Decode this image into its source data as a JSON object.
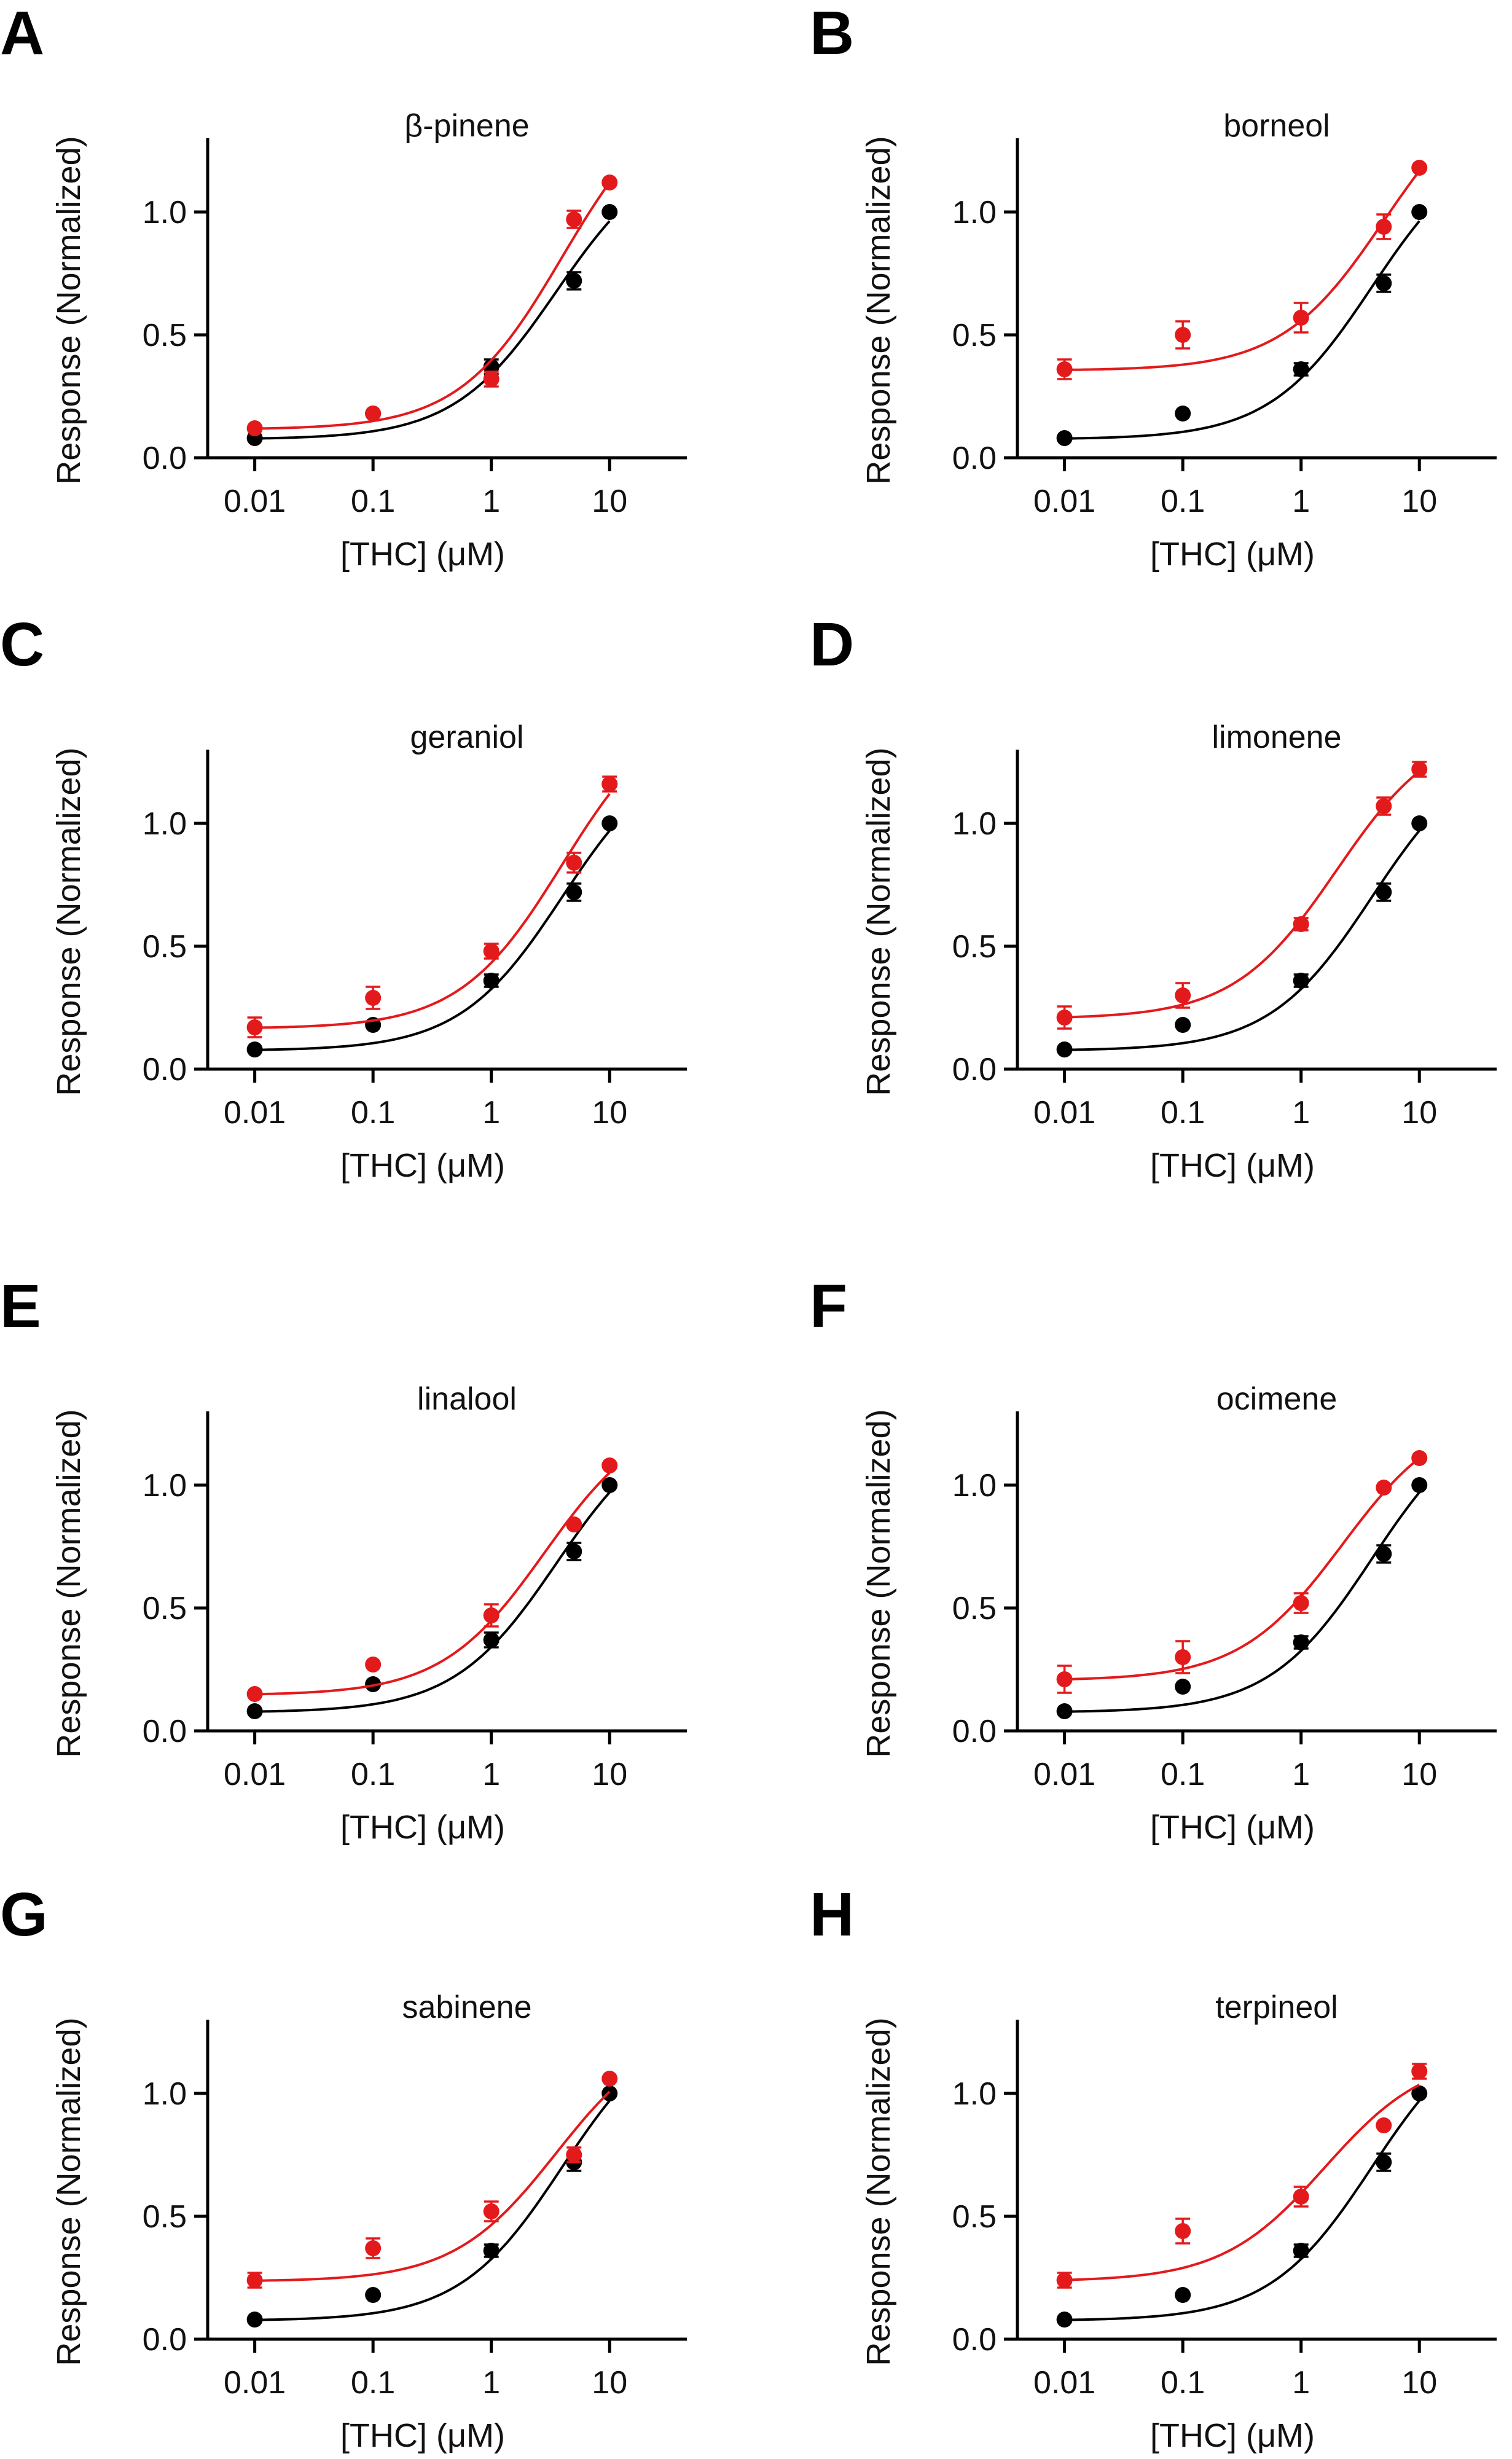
{
  "figure": {
    "series_colors": {
      "control": "#000000",
      "terpene": "#e31a1c"
    }
  },
  "chart_data": [
    {
      "panel": "A",
      "type": "scatter",
      "title": "β-pinene",
      "xlabel": "[THC] (μM)",
      "ylabel": "Response (Normalized)",
      "xscale": "log",
      "xlim": [
        0.004,
        45
      ],
      "ylim": [
        0,
        1.3
      ],
      "xticks": [
        0.01,
        0.1,
        1,
        10
      ],
      "xtick_labels": [
        "0.01",
        "0.1",
        "1",
        "10"
      ],
      "yticks": [
        0,
        0.5,
        1
      ],
      "ytick_labels": [
        "0.0",
        "0.5",
        "1.0"
      ],
      "x": [
        0.01,
        0.1,
        1,
        5,
        10
      ],
      "series": [
        {
          "key": "control",
          "values": [
            0.08,
            0.18,
            0.37,
            0.72,
            1.0
          ],
          "errors": [
            0,
            0,
            0.03,
            0.035,
            0
          ]
        },
        {
          "key": "terpene",
          "values": [
            0.12,
            0.18,
            0.32,
            0.97,
            1.12
          ],
          "errors": [
            0,
            0,
            0.03,
            0.035,
            0
          ]
        }
      ]
    },
    {
      "panel": "B",
      "type": "scatter",
      "title": "borneol",
      "xlabel": "[THC] (μM)",
      "ylabel": "Response (Normalized)",
      "xscale": "log",
      "xlim": [
        0.004,
        45
      ],
      "ylim": [
        0,
        1.3
      ],
      "xticks": [
        0.01,
        0.1,
        1,
        10
      ],
      "xtick_labels": [
        "0.01",
        "0.1",
        "1",
        "10"
      ],
      "yticks": [
        0,
        0.5,
        1
      ],
      "ytick_labels": [
        "0.0",
        "0.5",
        "1.0"
      ],
      "x": [
        0.01,
        0.1,
        1,
        5,
        10
      ],
      "series": [
        {
          "key": "control",
          "values": [
            0.08,
            0.18,
            0.36,
            0.71,
            1.0
          ],
          "errors": [
            0,
            0,
            0.025,
            0.035,
            0
          ]
        },
        {
          "key": "terpene",
          "values": [
            0.36,
            0.5,
            0.57,
            0.94,
            1.18
          ],
          "errors": [
            0.04,
            0.055,
            0.06,
            0.05,
            0
          ]
        }
      ]
    },
    {
      "panel": "C",
      "type": "scatter",
      "title": "geraniol",
      "xlabel": "[THC] (μM)",
      "ylabel": "Response (Normalized)",
      "xscale": "log",
      "xlim": [
        0.004,
        45
      ],
      "ylim": [
        0,
        1.3
      ],
      "xticks": [
        0.01,
        0.1,
        1,
        10
      ],
      "xtick_labels": [
        "0.01",
        "0.1",
        "1",
        "10"
      ],
      "yticks": [
        0,
        0.5,
        1
      ],
      "ytick_labels": [
        "0.0",
        "0.5",
        "1.0"
      ],
      "x": [
        0.01,
        0.1,
        1,
        5,
        10
      ],
      "series": [
        {
          "key": "control",
          "values": [
            0.08,
            0.18,
            0.36,
            0.72,
            1.0
          ],
          "errors": [
            0,
            0,
            0.025,
            0.035,
            0
          ]
        },
        {
          "key": "terpene",
          "values": [
            0.17,
            0.29,
            0.48,
            0.84,
            1.16
          ],
          "errors": [
            0.04,
            0.045,
            0.03,
            0.04,
            0.03
          ]
        }
      ]
    },
    {
      "panel": "D",
      "type": "scatter",
      "title": "limonene",
      "xlabel": "[THC] (μM)",
      "ylabel": "Response (Normalized)",
      "xscale": "log",
      "xlim": [
        0.004,
        45
      ],
      "ylim": [
        0,
        1.3
      ],
      "xticks": [
        0.01,
        0.1,
        1,
        10
      ],
      "xtick_labels": [
        "0.01",
        "0.1",
        "1",
        "10"
      ],
      "yticks": [
        0,
        0.5,
        1
      ],
      "ytick_labels": [
        "0.0",
        "0.5",
        "1.0"
      ],
      "x": [
        0.01,
        0.1,
        1,
        5,
        10
      ],
      "series": [
        {
          "key": "control",
          "values": [
            0.08,
            0.18,
            0.36,
            0.72,
            1.0
          ],
          "errors": [
            0,
            0,
            0.025,
            0.035,
            0
          ]
        },
        {
          "key": "terpene",
          "values": [
            0.21,
            0.3,
            0.59,
            1.07,
            1.22
          ],
          "errors": [
            0.045,
            0.05,
            0.025,
            0.035,
            0.03
          ]
        }
      ]
    },
    {
      "panel": "E",
      "type": "scatter",
      "title": "linalool",
      "xlabel": "[THC] (μM)",
      "ylabel": "Response (Normalized)",
      "xscale": "log",
      "xlim": [
        0.004,
        45
      ],
      "ylim": [
        0,
        1.3
      ],
      "xticks": [
        0.01,
        0.1,
        1,
        10
      ],
      "xtick_labels": [
        "0.01",
        "0.1",
        "1",
        "10"
      ],
      "yticks": [
        0,
        0.5,
        1
      ],
      "ytick_labels": [
        "0.0",
        "0.5",
        "1.0"
      ],
      "x": [
        0.01,
        0.1,
        1,
        5,
        10
      ],
      "series": [
        {
          "key": "control",
          "values": [
            0.08,
            0.19,
            0.37,
            0.73,
            1.0
          ],
          "errors": [
            0,
            0,
            0.03,
            0.035,
            0
          ]
        },
        {
          "key": "terpene",
          "values": [
            0.15,
            0.27,
            0.47,
            0.84,
            1.08
          ],
          "errors": [
            0,
            0,
            0.045,
            0,
            0
          ]
        }
      ]
    },
    {
      "panel": "F",
      "type": "scatter",
      "title": "ocimene",
      "xlabel": "[THC] (μM)",
      "ylabel": "Response (Normalized)",
      "xscale": "log",
      "xlim": [
        0.004,
        45
      ],
      "ylim": [
        0,
        1.3
      ],
      "xticks": [
        0.01,
        0.1,
        1,
        10
      ],
      "xtick_labels": [
        "0.01",
        "0.1",
        "1",
        "10"
      ],
      "yticks": [
        0,
        0.5,
        1
      ],
      "ytick_labels": [
        "0.0",
        "0.5",
        "1.0"
      ],
      "x": [
        0.01,
        0.1,
        1,
        5,
        10
      ],
      "series": [
        {
          "key": "control",
          "values": [
            0.08,
            0.18,
            0.36,
            0.72,
            1.0
          ],
          "errors": [
            0,
            0,
            0.025,
            0.035,
            0
          ]
        },
        {
          "key": "terpene",
          "values": [
            0.21,
            0.3,
            0.52,
            0.99,
            1.11
          ],
          "errors": [
            0.055,
            0.065,
            0.04,
            0,
            0
          ]
        }
      ]
    },
    {
      "panel": "G",
      "type": "scatter",
      "title": "sabinene",
      "xlabel": "[THC] (μM)",
      "ylabel": "Response (Normalized)",
      "xscale": "log",
      "xlim": [
        0.004,
        45
      ],
      "ylim": [
        0,
        1.3
      ],
      "xticks": [
        0.01,
        0.1,
        1,
        10
      ],
      "xtick_labels": [
        "0.01",
        "0.1",
        "1",
        "10"
      ],
      "yticks": [
        0,
        0.5,
        1
      ],
      "ytick_labels": [
        "0.0",
        "0.5",
        "1.0"
      ],
      "x": [
        0.01,
        0.1,
        1,
        5,
        10
      ],
      "series": [
        {
          "key": "control",
          "values": [
            0.08,
            0.18,
            0.36,
            0.72,
            1.0
          ],
          "errors": [
            0,
            0,
            0.025,
            0.035,
            0
          ]
        },
        {
          "key": "terpene",
          "values": [
            0.24,
            0.37,
            0.52,
            0.75,
            1.06
          ],
          "errors": [
            0.03,
            0.04,
            0.04,
            0.03,
            0
          ]
        }
      ]
    },
    {
      "panel": "H",
      "type": "scatter",
      "title": "terpineol",
      "xlabel": "[THC] (μM)",
      "ylabel": "Response (Normalized)",
      "xscale": "log",
      "xlim": [
        0.004,
        45
      ],
      "ylim": [
        0,
        1.3
      ],
      "xticks": [
        0.01,
        0.1,
        1,
        10
      ],
      "xtick_labels": [
        "0.01",
        "0.1",
        "1",
        "10"
      ],
      "yticks": [
        0,
        0.5,
        1
      ],
      "ytick_labels": [
        "0.0",
        "0.5",
        "1.0"
      ],
      "x": [
        0.01,
        0.1,
        1,
        5,
        10
      ],
      "series": [
        {
          "key": "control",
          "values": [
            0.08,
            0.18,
            0.36,
            0.72,
            1.0
          ],
          "errors": [
            0,
            0,
            0.025,
            0.035,
            0
          ]
        },
        {
          "key": "terpene",
          "values": [
            0.24,
            0.44,
            0.58,
            0.87,
            1.09
          ],
          "errors": [
            0.03,
            0.05,
            0.04,
            0,
            0.03
          ]
        }
      ]
    }
  ]
}
